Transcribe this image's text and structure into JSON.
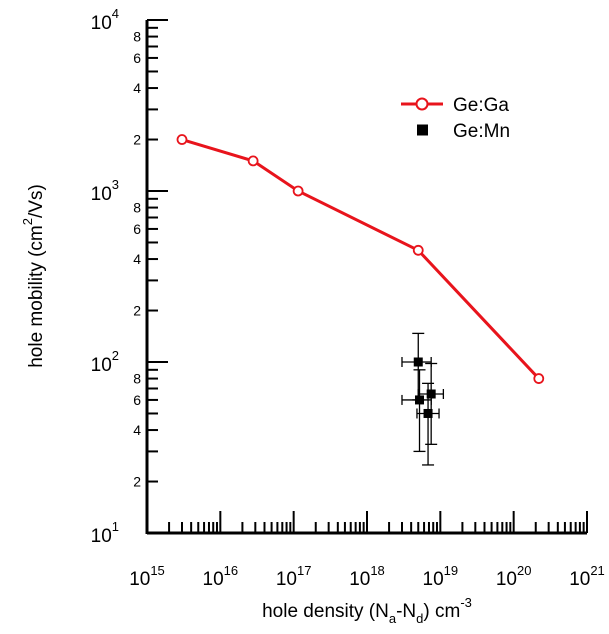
{
  "chart_data": {
    "type": "scatter",
    "xlabel_parts": [
      "hole density (N",
      "a",
      "-N",
      "d",
      ") cm",
      "-3"
    ],
    "ylabel_parts": [
      "hole mobility (cm",
      "2",
      "/Vs)"
    ],
    "xscale": "log",
    "yscale": "log",
    "xlim": [
      1000000000000000.0,
      1e+21
    ],
    "ylim": [
      10,
      10000
    ],
    "x_ticks": [
      {
        "base": "10",
        "exp": "15"
      },
      {
        "base": "10",
        "exp": "16"
      },
      {
        "base": "10",
        "exp": "17"
      },
      {
        "base": "10",
        "exp": "18"
      },
      {
        "base": "10",
        "exp": "19"
      },
      {
        "base": "10",
        "exp": "20"
      },
      {
        "base": "10",
        "exp": "21"
      }
    ],
    "y_ticks": [
      {
        "value": 10,
        "base": "10",
        "exp": "1"
      },
      {
        "value": 100,
        "base": "10",
        "exp": "2"
      },
      {
        "value": 1000,
        "base": "10",
        "exp": "3"
      },
      {
        "value": 10000,
        "base": "10",
        "exp": "4"
      }
    ],
    "y_minor_labels": [
      {
        "value": 20,
        "label": "2"
      },
      {
        "value": 40,
        "label": "4"
      },
      {
        "value": 60,
        "label": "6"
      },
      {
        "value": 80,
        "label": "8"
      },
      {
        "value": 200,
        "label": "2"
      },
      {
        "value": 400,
        "label": "4"
      },
      {
        "value": 600,
        "label": "6"
      },
      {
        "value": 800,
        "label": "8"
      },
      {
        "value": 2000,
        "label": "2"
      },
      {
        "value": 4000,
        "label": "4"
      },
      {
        "value": 6000,
        "label": "6"
      },
      {
        "value": 8000,
        "label": "8"
      }
    ],
    "grid": false,
    "legend_position": "top-right",
    "series": [
      {
        "name": "Ge:Ga",
        "color": "#e8141c",
        "marker": "open-circle",
        "line": true,
        "points": [
          {
            "x": 3000000000000000.0,
            "y": 2000
          },
          {
            "x": 2.8e+16,
            "y": 1500
          },
          {
            "x": 1.15e+17,
            "y": 1000
          },
          {
            "x": 5e+18,
            "y": 450
          },
          {
            "x": 2.2e+20,
            "y": 80
          }
        ]
      },
      {
        "name": "Ge:Mn",
        "color": "#000000",
        "marker": "filled-square",
        "line": false,
        "points": [
          {
            "x": 5e+18,
            "y": 100,
            "x_lo": 3e+18,
            "x_hi": 7.5e+18,
            "y_lo": 60,
            "y_hi": 147
          },
          {
            "x": 5.2e+18,
            "y": 60,
            "x_lo": 3e+18,
            "x_hi": 7.5e+18,
            "y_lo": 30,
            "y_hi": 90
          },
          {
            "x": 7.5e+18,
            "y": 65,
            "x_lo": 5e+18,
            "x_hi": 1.1e+19,
            "y_lo": 33,
            "y_hi": 98
          },
          {
            "x": 6.8e+18,
            "y": 50,
            "x_lo": 4.8e+18,
            "x_hi": 9.6e+18,
            "y_lo": 25,
            "y_hi": 75
          }
        ]
      }
    ]
  }
}
